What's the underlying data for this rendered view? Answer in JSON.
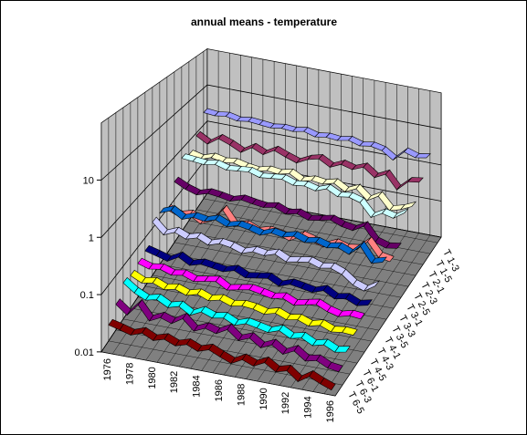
{
  "chart_data": {
    "type": "ribbon3d",
    "title": "annual means - temperature",
    "categories": [
      "1976",
      null,
      "1978",
      null,
      "1980",
      null,
      "1982",
      null,
      "1984",
      null,
      "1986",
      null,
      "1988",
      null,
      "1990",
      null,
      "1992",
      null,
      "1994",
      null,
      "1996"
    ],
    "log_scale": true,
    "ylim": [
      0.01,
      100
    ],
    "yticks": [
      0.01,
      0.1,
      1,
      10
    ],
    "grid": true,
    "series": [
      {
        "name": "T 1-3",
        "color": "#9999ff",
        "values": [
          3.3,
          3.1,
          3.4,
          2.9,
          3.2,
          3.0,
          2.8,
          3.1,
          2.9,
          3.3,
          2.7,
          3.0,
          2.8,
          3.2,
          2.6,
          2.9,
          2.5,
          1.6,
          3.0,
          2.4,
          2.7
        ]
      },
      {
        "name": "T 1-5",
        "color": "#993366",
        "values": [
          1.3,
          0.9,
          1.4,
          1.1,
          0.8,
          1.2,
          0.9,
          1.3,
          1.0,
          0.8,
          1.1,
          1.3,
          0.9,
          1.2,
          1.0,
          1.3,
          0.8,
          1.1,
          0.5,
          0.9,
          1.0
        ]
      },
      {
        "name": "T 2-1",
        "color": "#ffffcc",
        "values": [
          0.7,
          0.6,
          0.75,
          0.65,
          0.7,
          0.6,
          0.55,
          0.65,
          0.6,
          0.7,
          0.5,
          0.6,
          0.55,
          0.65,
          0.45,
          0.6,
          0.35,
          0.5,
          0.25,
          0.3,
          0.4
        ]
      },
      {
        "name": "T 2-3",
        "color": "#ccffff",
        "values": [
          0.9,
          0.85,
          0.8,
          0.9,
          0.75,
          0.8,
          0.85,
          0.7,
          0.75,
          0.8,
          0.65,
          0.7,
          0.6,
          0.75,
          0.55,
          0.6,
          0.5,
          0.25,
          0.35,
          0.3,
          0.45
        ]
      },
      {
        "name": "T 2-5",
        "color": "#660066",
        "values": [
          0.4,
          0.3,
          0.25,
          0.3,
          0.28,
          0.25,
          0.3,
          0.27,
          0.25,
          0.28,
          0.22,
          0.25,
          0.2,
          0.22,
          0.25,
          0.2,
          0.18,
          0.25,
          0.12,
          0.1,
          0.11
        ]
      },
      {
        "name": "T 3-1",
        "color": "#ff8080",
        "values": [
          0.15,
          0.12,
          0.14,
          0.1,
          0.13,
          0.25,
          0.12,
          0.14,
          0.11,
          0.13,
          0.12,
          0.1,
          0.14,
          0.12,
          0.1,
          0.13,
          0.11,
          0.12,
          0.2,
          0.1,
          0.09
        ]
      },
      {
        "name": "T 3-3",
        "color": "#0066cc",
        "values": [
          0.2,
          0.25,
          0.18,
          0.22,
          0.2,
          0.24,
          0.19,
          0.22,
          0.2,
          0.17,
          0.21,
          0.19,
          0.22,
          0.18,
          0.2,
          0.17,
          0.19,
          0.15,
          0.25,
          0.12,
          0.14
        ]
      },
      {
        "name": "T 3-5",
        "color": "#ccccff",
        "values": [
          0.2,
          0.12,
          0.15,
          0.12,
          0.14,
          0.11,
          0.13,
          0.12,
          0.1,
          0.12,
          0.11,
          0.13,
          0.1,
          0.11,
          0.12,
          0.1,
          0.11,
          0.09,
          0.06,
          0.05,
          0.07
        ]
      },
      {
        "name": "T 4-1",
        "color": "#000080",
        "values": [
          0.08,
          0.07,
          0.06,
          0.08,
          0.06,
          0.07,
          0.065,
          0.06,
          0.07,
          0.055,
          0.06,
          0.065,
          0.05,
          0.06,
          0.055,
          0.05,
          0.06,
          0.045,
          0.05,
          0.04,
          0.045
        ]
      },
      {
        "name": "T 4-3",
        "color": "#ff00ff",
        "values": [
          0.07,
          0.06,
          0.065,
          0.055,
          0.06,
          0.05,
          0.055,
          0.06,
          0.045,
          0.05,
          0.055,
          0.05,
          0.045,
          0.05,
          0.04,
          0.045,
          0.05,
          0.04,
          0.035,
          0.04,
          0.038
        ]
      },
      {
        "name": "T 4-5",
        "color": "#ffff00",
        "values": [
          0.063,
          0.05,
          0.055,
          0.045,
          0.05,
          0.042,
          0.048,
          0.04,
          0.045,
          0.038,
          0.042,
          0.04,
          0.035,
          0.04,
          0.033,
          0.036,
          0.03,
          0.034,
          0.028,
          0.03,
          0.029
        ]
      },
      {
        "name": "T 6-1",
        "color": "#00ffff",
        "values": [
          0.07,
          0.05,
          0.04,
          0.045,
          0.035,
          0.04,
          0.03,
          0.038,
          0.032,
          0.035,
          0.028,
          0.033,
          0.03,
          0.027,
          0.032,
          0.025,
          0.028,
          0.022,
          0.025,
          0.02,
          0.022
        ]
      },
      {
        "name": "T 6-3",
        "color": "#800080",
        "values": [
          0.043,
          0.03,
          0.05,
          0.028,
          0.035,
          0.03,
          0.04,
          0.026,
          0.032,
          0.028,
          0.036,
          0.025,
          0.03,
          0.022,
          0.027,
          0.02,
          0.025,
          0.018,
          0.02,
          0.016,
          0.015
        ]
      },
      {
        "name": "T 6-5",
        "color": "#800000",
        "values": [
          0.028,
          0.025,
          0.022,
          0.026,
          0.021,
          0.024,
          0.02,
          0.023,
          0.019,
          0.022,
          0.018,
          0.015,
          0.019,
          0.016,
          0.02,
          0.015,
          0.017,
          0.012,
          0.016,
          0.013,
          0.011
        ]
      }
    ]
  }
}
